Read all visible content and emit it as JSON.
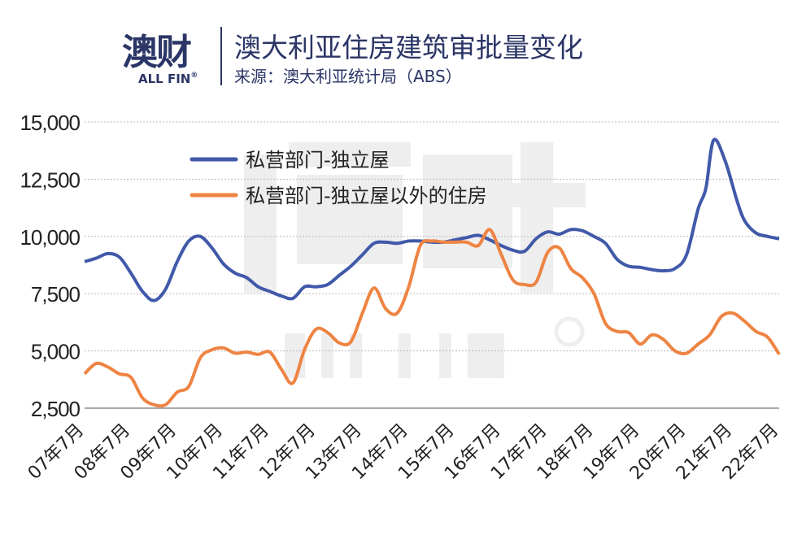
{
  "header": {
    "logo_cn": "澳财",
    "logo_en": "ALL FIN",
    "logo_reg": "®",
    "title": "澳大利亚住房建筑审批量变化",
    "source": "来源：澳大利亚统计局（ABS）"
  },
  "watermark": {
    "cn": "澳财",
    "en": "ALL FIN ®"
  },
  "colors": {
    "blue": "#4059a9",
    "orange": "#ee8443",
    "grid": "#bbbbbb",
    "text": "#222222",
    "brand": "#2b3566"
  },
  "chart_data": {
    "type": "line",
    "title": "澳大利亚住房建筑审批量变化",
    "xlabel": "",
    "ylabel": "",
    "ylim": [
      2500,
      15000
    ],
    "yticks": [
      2500,
      5000,
      7500,
      10000,
      12500,
      15000
    ],
    "ytick_labels": [
      "2,500",
      "5,000",
      "7,500",
      "10,000",
      "12,500",
      "15,000"
    ],
    "xlim": [
      "2007-07",
      "2022-07"
    ],
    "xtick_dates": [
      "2007-07",
      "2008-07",
      "2009-07",
      "2010-07",
      "2011-07",
      "2012-07",
      "2013-07",
      "2014-07",
      "2015-07",
      "2016-07",
      "2017-07",
      "2018-07",
      "2019-07",
      "2020-07",
      "2021-07",
      "2022-07"
    ],
    "xtick_labels": [
      "07年7月",
      "08年7月",
      "09年7月",
      "10年7月",
      "11年7月",
      "12年7月",
      "13年7月",
      "14年7月",
      "15年7月",
      "16年7月",
      "17年7月",
      "18年7月",
      "19年7月",
      "20年7月",
      "21年7月",
      "22年7月"
    ],
    "grid": "horizontal dotted",
    "legend_position": "top-left",
    "series": [
      {
        "name": "私营部门-独立屋",
        "color": "#4059a9",
        "points": [
          [
            "2007-07",
            8900
          ],
          [
            "2007-10",
            9050
          ],
          [
            "2008-01",
            9250
          ],
          [
            "2008-04",
            9100
          ],
          [
            "2008-07",
            8400
          ],
          [
            "2008-10",
            7600
          ],
          [
            "2009-01",
            7200
          ],
          [
            "2009-04",
            7700
          ],
          [
            "2009-07",
            8900
          ],
          [
            "2009-10",
            9800
          ],
          [
            "2010-01",
            10000
          ],
          [
            "2010-04",
            9500
          ],
          [
            "2010-07",
            8800
          ],
          [
            "2010-10",
            8400
          ],
          [
            "2011-01",
            8200
          ],
          [
            "2011-04",
            7800
          ],
          [
            "2011-07",
            7600
          ],
          [
            "2011-10",
            7400
          ],
          [
            "2012-01",
            7300
          ],
          [
            "2012-04",
            7800
          ],
          [
            "2012-07",
            7800
          ],
          [
            "2012-10",
            7900
          ],
          [
            "2013-01",
            8300
          ],
          [
            "2013-04",
            8700
          ],
          [
            "2013-07",
            9200
          ],
          [
            "2013-10",
            9700
          ],
          [
            "2014-01",
            9750
          ],
          [
            "2014-04",
            9700
          ],
          [
            "2014-07",
            9800
          ],
          [
            "2014-10",
            9800
          ],
          [
            "2015-01",
            9750
          ],
          [
            "2015-04",
            9750
          ],
          [
            "2015-07",
            9850
          ],
          [
            "2015-10",
            9950
          ],
          [
            "2016-01",
            10050
          ],
          [
            "2016-04",
            9850
          ],
          [
            "2016-07",
            9600
          ],
          [
            "2016-10",
            9400
          ],
          [
            "2017-01",
            9350
          ],
          [
            "2017-04",
            9900
          ],
          [
            "2017-07",
            10200
          ],
          [
            "2017-10",
            10100
          ],
          [
            "2018-01",
            10300
          ],
          [
            "2018-04",
            10250
          ],
          [
            "2018-07",
            10000
          ],
          [
            "2018-10",
            9700
          ],
          [
            "2019-01",
            9000
          ],
          [
            "2019-04",
            8700
          ],
          [
            "2019-07",
            8650
          ],
          [
            "2019-10",
            8550
          ],
          [
            "2020-01",
            8500
          ],
          [
            "2020-04",
            8600
          ],
          [
            "2020-07",
            9200
          ],
          [
            "2020-10",
            11200
          ],
          [
            "2020-12",
            12100
          ],
          [
            "2021-02",
            14200
          ],
          [
            "2021-05",
            13300
          ],
          [
            "2021-08",
            11600
          ],
          [
            "2021-10",
            10700
          ],
          [
            "2022-01",
            10150
          ],
          [
            "2022-04",
            10000
          ],
          [
            "2022-07",
            9900
          ]
        ]
      },
      {
        "name": "私营部门-独立屋以外的住房",
        "color": "#ee8443",
        "points": [
          [
            "2007-07",
            4000
          ],
          [
            "2007-10",
            4450
          ],
          [
            "2008-01",
            4300
          ],
          [
            "2008-04",
            4000
          ],
          [
            "2008-07",
            3850
          ],
          [
            "2008-10",
            2950
          ],
          [
            "2009-01",
            2650
          ],
          [
            "2009-04",
            2650
          ],
          [
            "2009-07",
            3200
          ],
          [
            "2009-10",
            3450
          ],
          [
            "2010-01",
            4700
          ],
          [
            "2010-04",
            5050
          ],
          [
            "2010-07",
            5130
          ],
          [
            "2010-10",
            4900
          ],
          [
            "2011-01",
            4950
          ],
          [
            "2011-04",
            4850
          ],
          [
            "2011-07",
            4950
          ],
          [
            "2011-10",
            4200
          ],
          [
            "2012-01",
            3600
          ],
          [
            "2012-04",
            5060
          ],
          [
            "2012-07",
            5950
          ],
          [
            "2012-10",
            5800
          ],
          [
            "2013-01",
            5350
          ],
          [
            "2013-04",
            5400
          ],
          [
            "2013-07",
            6650
          ],
          [
            "2013-10",
            7750
          ],
          [
            "2014-01",
            6850
          ],
          [
            "2014-04",
            6650
          ],
          [
            "2014-07",
            7800
          ],
          [
            "2014-10",
            9600
          ],
          [
            "2015-01",
            9800
          ],
          [
            "2015-04",
            9750
          ],
          [
            "2015-07",
            9750
          ],
          [
            "2015-10",
            9750
          ],
          [
            "2016-01",
            9600
          ],
          [
            "2016-04",
            10300
          ],
          [
            "2016-07",
            9200
          ],
          [
            "2016-10",
            8100
          ],
          [
            "2017-01",
            7900
          ],
          [
            "2017-04",
            8000
          ],
          [
            "2017-07",
            9300
          ],
          [
            "2017-10",
            9500
          ],
          [
            "2018-01",
            8600
          ],
          [
            "2018-04",
            8200
          ],
          [
            "2018-07",
            7500
          ],
          [
            "2018-10",
            6200
          ],
          [
            "2019-01",
            5850
          ],
          [
            "2019-04",
            5800
          ],
          [
            "2019-07",
            5300
          ],
          [
            "2019-10",
            5700
          ],
          [
            "2020-01",
            5500
          ],
          [
            "2020-04",
            5000
          ],
          [
            "2020-07",
            4900
          ],
          [
            "2020-10",
            5300
          ],
          [
            "2021-01",
            5700
          ],
          [
            "2021-04",
            6500
          ],
          [
            "2021-07",
            6650
          ],
          [
            "2021-10",
            6300
          ],
          [
            "2022-01",
            5850
          ],
          [
            "2022-04",
            5600
          ],
          [
            "2022-07",
            4850
          ]
        ]
      }
    ]
  }
}
